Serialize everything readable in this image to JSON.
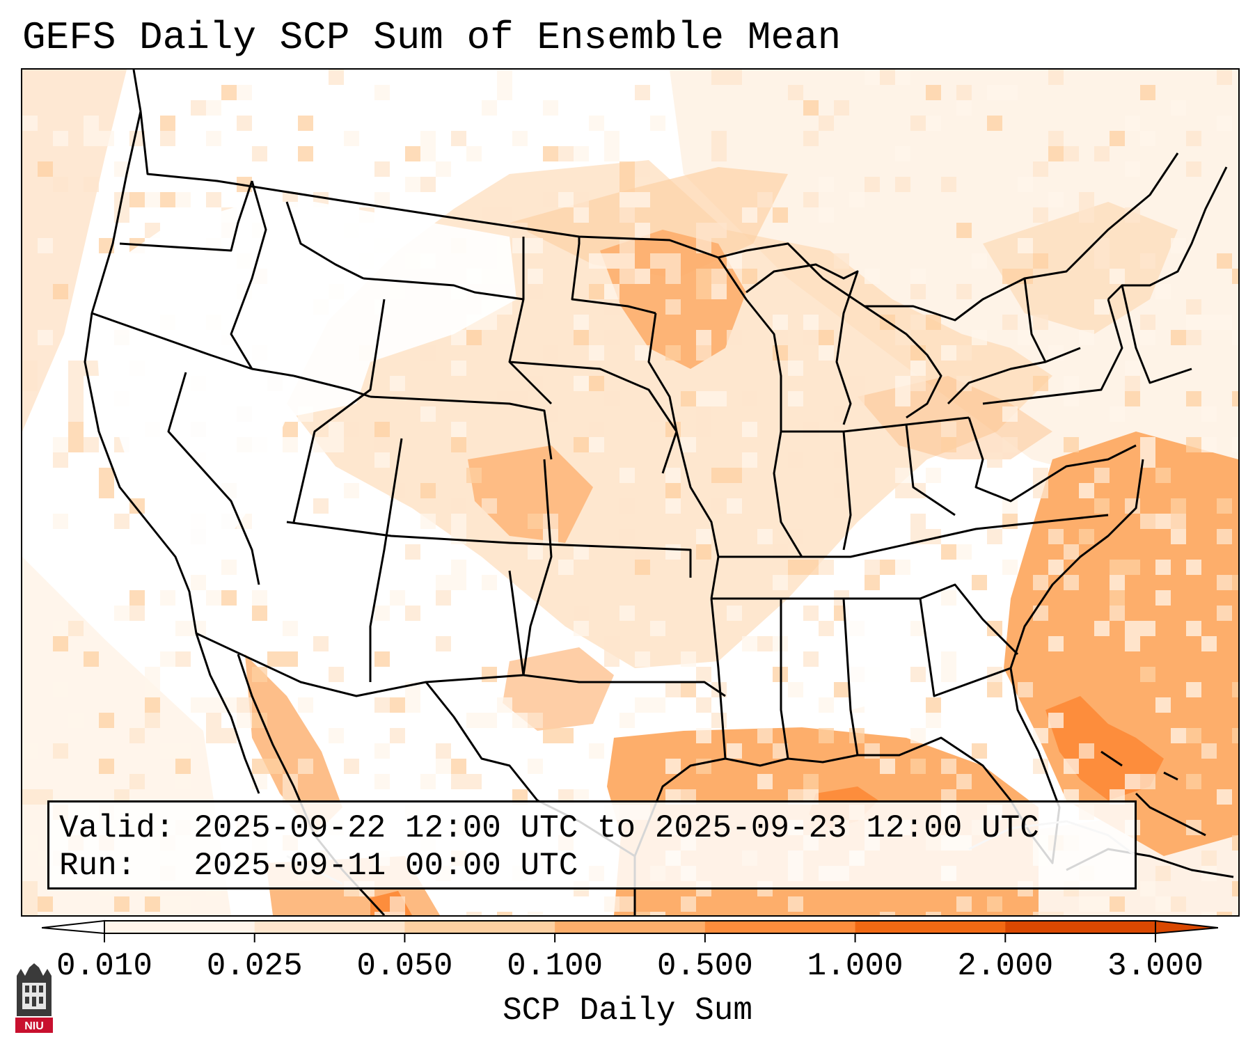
{
  "title": "GEFS Daily SCP Sum of Ensemble Mean",
  "info": {
    "valid_line": "Valid: 2025-09-22 12:00 UTC to 2025-09-23 12:00 UTC",
    "run_line": "Run:   2025-09-11 00:00 UTC"
  },
  "colorbar": {
    "label": "SCP Daily Sum",
    "ticks": [
      "0.010",
      "0.025",
      "0.050",
      "0.100",
      "0.500",
      "1.000",
      "2.000",
      "3.000"
    ],
    "colors": [
      "#fff5eb",
      "#fee6ce",
      "#fdd0a2",
      "#fdae6b",
      "#fd8d3c",
      "#f16913",
      "#d94801"
    ],
    "extend": "both"
  },
  "logo": {
    "text": "NIU",
    "name": "niu-logo"
  },
  "map_shading": {
    "colors": {
      "low": "#fff5eb",
      "light": "#fee6ce",
      "mid": "#fdd0a2",
      "high": "#fdae6b",
      "peak": "#fd8d3c"
    }
  }
}
